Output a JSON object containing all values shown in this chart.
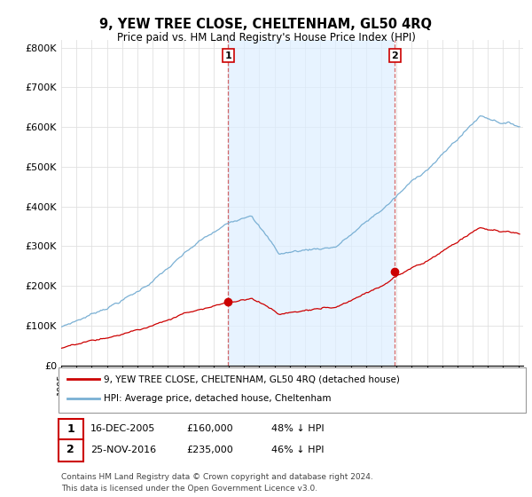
{
  "title": "9, YEW TREE CLOSE, CHELTENHAM, GL50 4RQ",
  "subtitle": "Price paid vs. HM Land Registry's House Price Index (HPI)",
  "ylabel_ticks": [
    "£0",
    "£100K",
    "£200K",
    "£300K",
    "£400K",
    "£500K",
    "£600K",
    "£700K",
    "£800K"
  ],
  "ytick_vals": [
    0,
    100000,
    200000,
    300000,
    400000,
    500000,
    600000,
    700000,
    800000
  ],
  "ylim": [
    0,
    820000
  ],
  "xlim_start": 1995.0,
  "xlim_end": 2025.3,
  "hpi_color": "#7ab0d4",
  "price_color": "#cc0000",
  "shade_color": "#ddeeff",
  "sale1_x": 2005.96,
  "sale1_y": 160000,
  "sale2_x": 2016.9,
  "sale2_y": 235000,
  "legend_line1": "9, YEW TREE CLOSE, CHELTENHAM, GL50 4RQ (detached house)",
  "legend_line2": "HPI: Average price, detached house, Cheltenham",
  "table_row1": [
    "1",
    "16-DEC-2005",
    "£160,000",
    "48% ↓ HPI"
  ],
  "table_row2": [
    "2",
    "25-NOV-2016",
    "£235,000",
    "46% ↓ HPI"
  ],
  "footnote": "Contains HM Land Registry data © Crown copyright and database right 2024.\nThis data is licensed under the Open Government Licence v3.0.",
  "background_color": "#ffffff",
  "grid_color": "#e0e0e0"
}
